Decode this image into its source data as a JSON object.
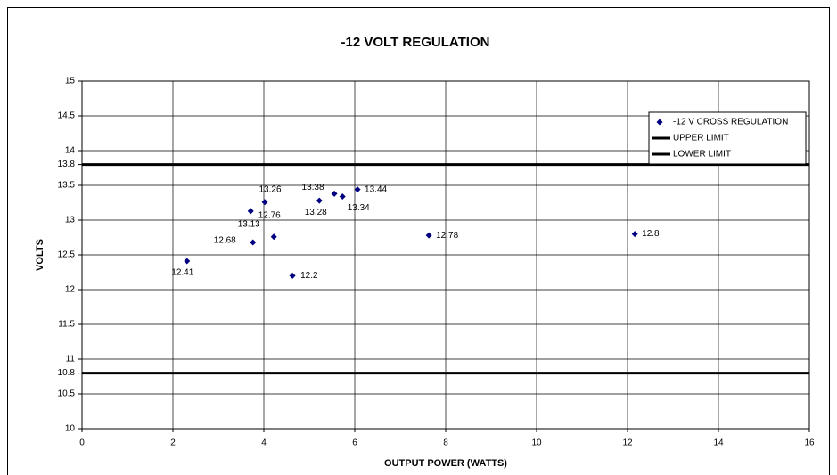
{
  "chart_data": {
    "type": "scatter",
    "title": "-12 VOLT REGULATION",
    "xlabel": "OUTPUT POWER (WATTS)",
    "ylabel": "VOLTS",
    "xlim": [
      0,
      16
    ],
    "ylim": [
      10,
      15
    ],
    "xticks": [
      0,
      2,
      4,
      6,
      8,
      10,
      12,
      14,
      16
    ],
    "yticks": [
      10,
      10.5,
      10.8,
      11,
      11.5,
      12,
      12.5,
      13,
      13.5,
      13.8,
      14,
      14.5,
      15
    ],
    "grid": true,
    "legend": "upper right",
    "series": [
      {
        "name": "-12 V CROSS REGULATION",
        "color": "#000080",
        "x": [
          2.31,
          3.76,
          3.71,
          4.02,
          4.22,
          4.63,
          5.22,
          5.55,
          5.73,
          6.06,
          7.63,
          12.16
        ],
        "values": [
          12.41,
          12.68,
          13.13,
          13.26,
          12.76,
          12.2,
          13.28,
          13.38,
          13.34,
          13.44,
          12.78,
          12.8
        ]
      },
      {
        "name": "UPPER LIMIT",
        "color": "#000000",
        "x": [
          0,
          16
        ],
        "values": [
          13.8,
          13.8
        ]
      },
      {
        "name": "LOWER LIMIT",
        "color": "#000000",
        "x": [
          0,
          16
        ],
        "values": [
          10.8,
          10.8
        ]
      }
    ]
  }
}
